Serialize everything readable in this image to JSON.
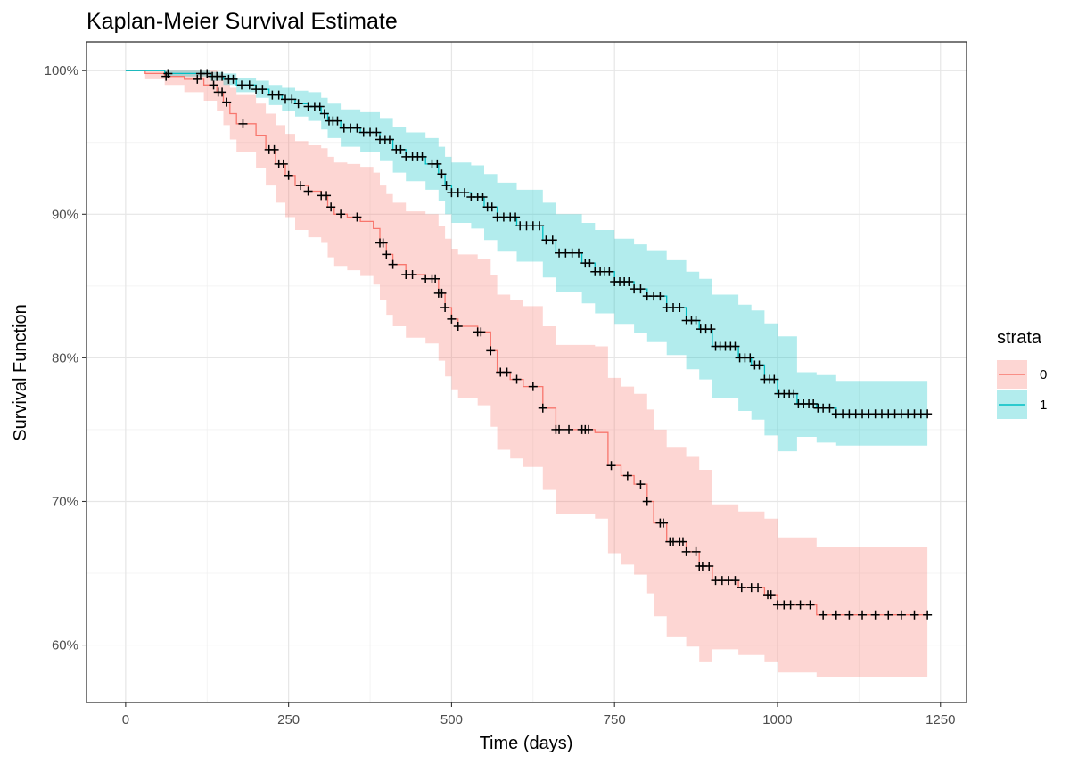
{
  "chart_data": {
    "type": "line",
    "subtype": "step",
    "title": "Kaplan-Meier Survival Estimate",
    "xlabel": "Time (days)",
    "ylabel": "Survival Function",
    "xlim": [
      -60,
      1290
    ],
    "ylim": [
      0.56,
      1.02
    ],
    "x_ticks": [
      0,
      250,
      500,
      750,
      1000,
      1250
    ],
    "x_tick_labels": [
      "0",
      "250",
      "500",
      "750",
      "1000",
      "1250"
    ],
    "y_ticks": [
      0.6,
      0.7,
      0.8,
      0.9,
      1.0
    ],
    "y_tick_labels": [
      "60%",
      "70%",
      "80%",
      "90%",
      "100%"
    ],
    "grid": true,
    "legend": {
      "title": "strata",
      "position": "right",
      "entries": [
        "0",
        "1"
      ]
    },
    "series": [
      {
        "name": "0",
        "color": "#f8766d",
        "time": [
          0,
          30,
          60,
          90,
          120,
          140,
          150,
          160,
          170,
          200,
          215,
          230,
          245,
          260,
          280,
          300,
          310,
          320,
          340,
          360,
          380,
          390,
          400,
          410,
          430,
          460,
          480,
          490,
          500,
          510,
          540,
          560,
          570,
          590,
          610,
          640,
          660,
          720,
          740,
          760,
          780,
          800,
          810,
          830,
          860,
          880,
          900,
          940,
          980,
          1000,
          1060,
          1230
        ],
        "survival": [
          1.0,
          0.998,
          0.996,
          0.994,
          0.99,
          0.985,
          0.978,
          0.97,
          0.963,
          0.955,
          0.945,
          0.935,
          0.927,
          0.92,
          0.916,
          0.913,
          0.905,
          0.9,
          0.898,
          0.895,
          0.89,
          0.88,
          0.872,
          0.865,
          0.858,
          0.855,
          0.845,
          0.835,
          0.827,
          0.822,
          0.818,
          0.805,
          0.79,
          0.785,
          0.78,
          0.765,
          0.75,
          0.748,
          0.725,
          0.718,
          0.712,
          0.7,
          0.685,
          0.672,
          0.665,
          0.655,
          0.645,
          0.64,
          0.635,
          0.628,
          0.621,
          0.621
        ],
        "lower": [
          1.0,
          0.994,
          0.99,
          0.985,
          0.979,
          0.972,
          0.962,
          0.952,
          0.943,
          0.932,
          0.92,
          0.908,
          0.898,
          0.889,
          0.884,
          0.88,
          0.87,
          0.864,
          0.861,
          0.857,
          0.851,
          0.84,
          0.83,
          0.822,
          0.814,
          0.81,
          0.798,
          0.787,
          0.778,
          0.772,
          0.767,
          0.752,
          0.736,
          0.73,
          0.724,
          0.708,
          0.691,
          0.688,
          0.664,
          0.656,
          0.649,
          0.636,
          0.62,
          0.606,
          0.599,
          0.588,
          0.597,
          0.593,
          0.588,
          0.581,
          0.578,
          0.578
        ],
        "upper": [
          1.0,
          1.0,
          1.0,
          1.0,
          1.0,
          0.998,
          0.994,
          0.988,
          0.983,
          0.977,
          0.97,
          0.962,
          0.956,
          0.951,
          0.948,
          0.946,
          0.94,
          0.936,
          0.935,
          0.933,
          0.929,
          0.92,
          0.914,
          0.908,
          0.902,
          0.9,
          0.892,
          0.883,
          0.876,
          0.872,
          0.869,
          0.858,
          0.844,
          0.84,
          0.836,
          0.822,
          0.809,
          0.808,
          0.786,
          0.78,
          0.775,
          0.764,
          0.75,
          0.738,
          0.731,
          0.722,
          0.698,
          0.693,
          0.688,
          0.675,
          0.668,
          0.668
        ],
        "censor_times": [
          62,
          110,
          135,
          142,
          148,
          155,
          180,
          220,
          228,
          235,
          242,
          250,
          268,
          280,
          300,
          308,
          315,
          330,
          355,
          390,
          395,
          400,
          410,
          430,
          440,
          460,
          470,
          475,
          480,
          485,
          490,
          500,
          510,
          540,
          545,
          560,
          575,
          585,
          600,
          625,
          640,
          660,
          665,
          680,
          700,
          705,
          710,
          745,
          770,
          790,
          800,
          820,
          825,
          835,
          840,
          850,
          855,
          860,
          875,
          880,
          885,
          895,
          905,
          915,
          925,
          935,
          945,
          960,
          970,
          985,
          990,
          1000,
          1010,
          1020,
          1035,
          1050,
          1070,
          1090,
          1110,
          1130,
          1150,
          1170,
          1190,
          1210,
          1230
        ]
      },
      {
        "name": "1",
        "color": "#00bfc4",
        "time": [
          0,
          60,
          130,
          150,
          170,
          200,
          220,
          240,
          260,
          280,
          300,
          310,
          330,
          360,
          390,
          410,
          430,
          460,
          480,
          490,
          500,
          530,
          550,
          570,
          600,
          640,
          660,
          700,
          720,
          750,
          780,
          800,
          830,
          860,
          880,
          900,
          940,
          960,
          980,
          1000,
          1030,
          1060,
          1090,
          1230
        ],
        "survival": [
          1.0,
          0.998,
          0.996,
          0.994,
          0.99,
          0.987,
          0.983,
          0.98,
          0.977,
          0.975,
          0.97,
          0.965,
          0.96,
          0.957,
          0.952,
          0.945,
          0.94,
          0.935,
          0.928,
          0.92,
          0.915,
          0.912,
          0.905,
          0.898,
          0.892,
          0.882,
          0.873,
          0.866,
          0.86,
          0.853,
          0.848,
          0.843,
          0.835,
          0.826,
          0.82,
          0.808,
          0.8,
          0.795,
          0.785,
          0.775,
          0.768,
          0.765,
          0.761,
          0.761
        ],
        "lower": [
          1.0,
          0.996,
          0.993,
          0.99,
          0.985,
          0.981,
          0.976,
          0.972,
          0.968,
          0.965,
          0.959,
          0.953,
          0.947,
          0.943,
          0.937,
          0.929,
          0.923,
          0.917,
          0.909,
          0.9,
          0.894,
          0.89,
          0.882,
          0.874,
          0.867,
          0.856,
          0.846,
          0.838,
          0.831,
          0.823,
          0.817,
          0.811,
          0.802,
          0.792,
          0.785,
          0.772,
          0.763,
          0.757,
          0.746,
          0.735,
          0.745,
          0.741,
          0.739,
          0.739
        ],
        "upper": [
          1.0,
          1.0,
          0.999,
          0.998,
          0.995,
          0.993,
          0.99,
          0.988,
          0.986,
          0.985,
          0.981,
          0.977,
          0.973,
          0.971,
          0.967,
          0.961,
          0.957,
          0.953,
          0.947,
          0.94,
          0.936,
          0.934,
          0.928,
          0.922,
          0.917,
          0.908,
          0.9,
          0.894,
          0.889,
          0.883,
          0.879,
          0.875,
          0.868,
          0.86,
          0.855,
          0.844,
          0.837,
          0.833,
          0.824,
          0.815,
          0.79,
          0.788,
          0.784,
          0.784
        ],
        "censor_times": [
          65,
          115,
          125,
          133,
          140,
          148,
          158,
          165,
          178,
          190,
          200,
          210,
          225,
          235,
          245,
          255,
          265,
          280,
          290,
          298,
          305,
          312,
          318,
          325,
          335,
          345,
          355,
          365,
          375,
          385,
          390,
          398,
          405,
          415,
          422,
          430,
          440,
          448,
          455,
          470,
          478,
          485,
          492,
          500,
          510,
          520,
          530,
          540,
          548,
          555,
          562,
          570,
          580,
          590,
          598,
          605,
          615,
          625,
          635,
          645,
          655,
          665,
          675,
          685,
          695,
          705,
          712,
          720,
          728,
          735,
          742,
          750,
          758,
          765,
          772,
          780,
          790,
          800,
          810,
          820,
          830,
          840,
          850,
          860,
          868,
          875,
          882,
          890,
          898,
          905,
          912,
          920,
          928,
          935,
          942,
          950,
          958,
          965,
          972,
          980,
          988,
          995,
          1002,
          1010,
          1018,
          1025,
          1032,
          1040,
          1048,
          1055,
          1062,
          1070,
          1080,
          1090,
          1100,
          1110,
          1120,
          1130,
          1140,
          1150,
          1160,
          1170,
          1180,
          1190,
          1200,
          1210,
          1220,
          1230
        ]
      }
    ]
  }
}
